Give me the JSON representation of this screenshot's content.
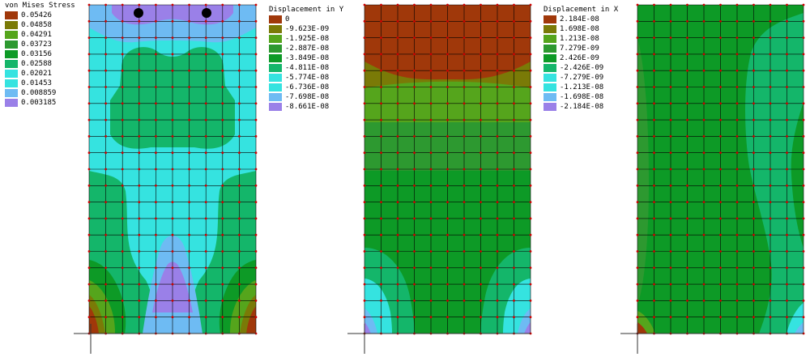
{
  "colors": {
    "c1": "#a0380a",
    "c2": "#7a7a07",
    "c3": "#55a51c",
    "c4": "#2d9930",
    "c5": "#0d9a26",
    "c6": "#14b66a",
    "c7": "#35e3e0",
    "c8": "#6ebbf3",
    "c9": "#9a80e8",
    "mesh": "#000000",
    "node": "#cc0000"
  },
  "legends": [
    {
      "title": "von Mises Stress",
      "values": [
        "0.05426",
        "0.04858",
        "0.04291",
        "0.03723",
        "0.03156",
        "0.02588",
        "0.02021",
        "0.01453",
        "0.008859",
        "0.003185"
      ]
    },
    {
      "title": "Displacement in Y",
      "values": [
        "0",
        "-9.623E-09",
        "-1.925E-08",
        "-2.887E-08",
        "-3.849E-08",
        "-4.811E-08",
        "-5.774E-08",
        "-6.736E-08",
        "-7.698E-08",
        "-8.661E-08"
      ]
    },
    {
      "title": "Displacement in X",
      "values": [
        "2.184E-08",
        "1.698E-08",
        "1.213E-08",
        "7.279E-09",
        "2.426E-09",
        "-2.426E-09",
        "-7.279E-09",
        "-1.213E-08",
        "-1.698E-08",
        "-2.184E-08"
      ]
    }
  ]
}
